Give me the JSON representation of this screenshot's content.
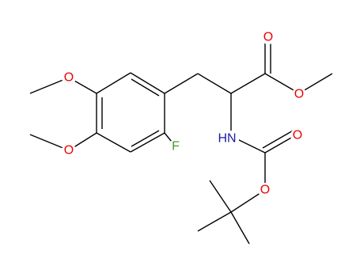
{
  "atoms": [
    {
      "label": "O"
    },
    {
      "label": "O"
    },
    {
      "label": "O"
    },
    {
      "label": "O"
    },
    {
      "label": "HN"
    },
    {
      "label": "O"
    },
    {
      "label": "O"
    },
    {
      "label": "F"
    }
  ]
}
